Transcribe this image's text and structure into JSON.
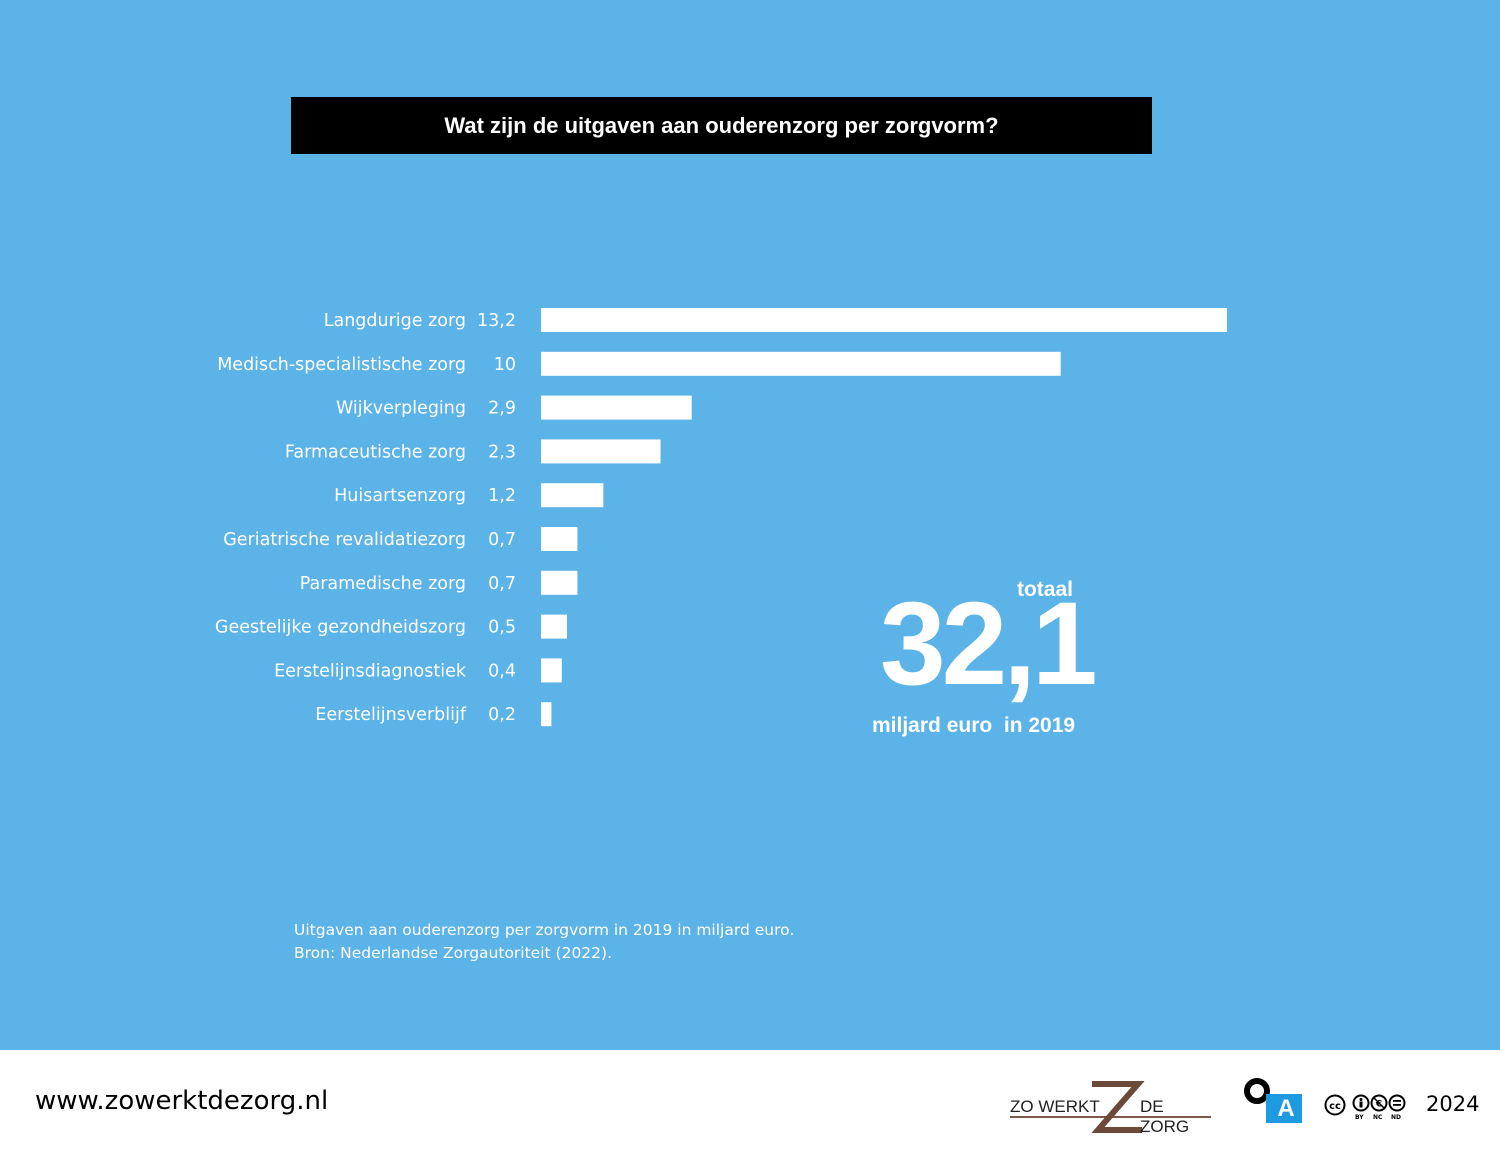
{
  "title": "Wat zijn de uitgaven aan ouderenzorg per zorgvorm?",
  "chart_data": {
    "type": "bar",
    "orientation": "horizontal",
    "categories": [
      "Langdurige zorg",
      "Medisch-specialistische zorg",
      "Wijkverpleging",
      "Farmaceutische zorg",
      "Huisartsenzorg",
      "Geriatrische revalidatiezorg",
      "Paramedische zorg",
      "Geestelijke gezondheidszorg",
      "Eerstelijnsdiagnostiek",
      "Eerstelijnsverblijf"
    ],
    "values": [
      13.2,
      10,
      2.9,
      2.3,
      1.2,
      0.7,
      0.7,
      0.5,
      0.4,
      0.2
    ],
    "value_labels": [
      "13,2",
      "10",
      "2,9",
      "2,3",
      "1,2",
      "0,7",
      "0,7",
      "0,5",
      "0,4",
      "0,2"
    ],
    "xlim": [
      0,
      13.2
    ],
    "grid": false,
    "bar_color": "#ffffff",
    "background_color": "#5bb3e8"
  },
  "total": {
    "label": "totaal",
    "value": "32,1",
    "unit": "miljard euro  in 2019"
  },
  "source": {
    "line1": "Uitgaven aan ouderenzorg per zorgvorm in 2019 in miljard euro.",
    "line2": "Bron: Nederlandse Zorgautoriteit (2022)."
  },
  "footer": {
    "url": "www.zowerktdezorg.nl",
    "logo_left": "ZO WERKT",
    "logo_right": "DE ZORG",
    "oa_letter": "A",
    "cc_labels": [
      "BY",
      "NC",
      "ND"
    ],
    "year": "2024"
  }
}
